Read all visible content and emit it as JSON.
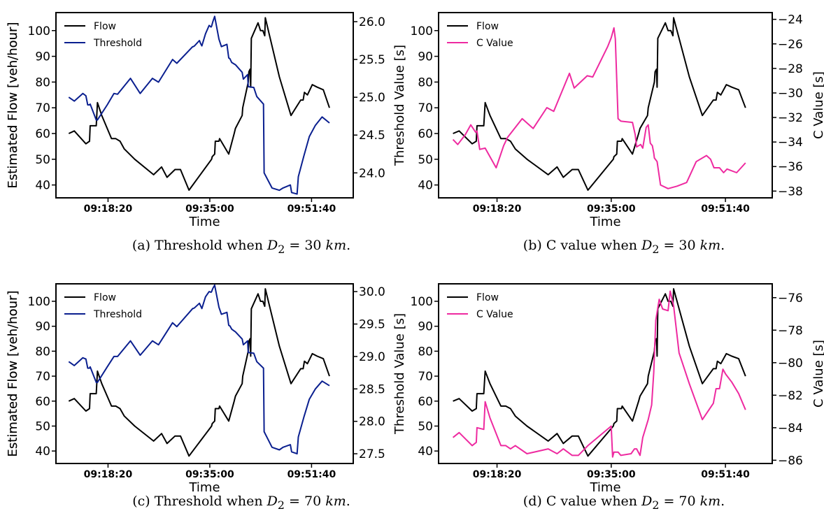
{
  "chart_data": [
    {
      "id": "a",
      "type": "line",
      "caption": {
        "prefix": "(a)  Threshold when ",
        "var": "D",
        "sub": "2",
        "eq": " = 30 ",
        "unit": "km",
        "suffix": "."
      },
      "xlabel": "Time",
      "ylabel_left": "Estimated Flow [veh/hour]",
      "ylabel_right": "Threshold Value [s]",
      "xticks": [
        "09:18:20",
        "09:35:00",
        "09:51:40"
      ],
      "x_tick_minutes": [
        18.33,
        35.0,
        51.67
      ],
      "xlim": [
        9.8,
        58.5
      ],
      "ylim_left": [
        35,
        107
      ],
      "ylim_right": [
        23.67,
        26.12
      ],
      "yticks_left": [
        40,
        50,
        60,
        70,
        80,
        90,
        100
      ],
      "yticks_right": [
        "24.0",
        "24.5",
        "25.0",
        "25.5",
        "26.0"
      ],
      "series": [
        {
          "name": "Flow",
          "axis": "left",
          "color": "#000000",
          "x": [
            11.9,
            12.8,
            14.7,
            15.3,
            15.4,
            16.4,
            16.6,
            17.3,
            18.9,
            19.6,
            20.3,
            21.0,
            22.7,
            25.8,
            27.1,
            28.0,
            29.3,
            30.2,
            31.6,
            35.3,
            35.4,
            35.8,
            35.9,
            36.5,
            36.6,
            38.1,
            39.0,
            39.2,
            40.3,
            40.4,
            41.3,
            41.4,
            41.6,
            41.7,
            41.8,
            42.9,
            43.3,
            43.7,
            44.0,
            44.1,
            46.4,
            48.3,
            49.9,
            50.3,
            50.5,
            51.0,
            51.8,
            52.6,
            53.6,
            54.6
          ],
          "y": [
            60,
            61,
            56,
            57,
            63,
            63,
            72,
            67,
            58,
            58,
            57,
            54,
            50,
            44,
            47,
            43,
            46,
            46,
            38,
            50,
            51,
            52,
            57,
            57,
            58,
            52,
            60,
            62,
            67,
            70,
            80,
            84,
            85,
            78,
            97,
            103,
            100,
            100,
            98,
            105,
            82,
            67,
            73,
            73,
            76,
            75,
            79,
            78,
            77,
            70
          ]
        },
        {
          "name": "Threshold",
          "axis": "right",
          "color": "#0a1f8f",
          "x": [
            11.9,
            12.8,
            14.2,
            14.7,
            15.0,
            15.3,
            15.4,
            16.4,
            16.6,
            18.2,
            19.3,
            19.9,
            22.0,
            23.6,
            25.6,
            26.6,
            28.9,
            29.6,
            32.2,
            32.3,
            32.5,
            33.3,
            33.5,
            33.7,
            34.3,
            34.9,
            35.2,
            35.3,
            35.5,
            35.8,
            36.5,
            36.9,
            37.8,
            38.1,
            38.3,
            38.6,
            39.2,
            40.3,
            40.5,
            41.2,
            41.3,
            42.2,
            42.7,
            43.8,
            43.9,
            45.2,
            46.4,
            47.0,
            48.2,
            48.4,
            49.3,
            49.5,
            50.4,
            51.3,
            52.3,
            53.4,
            54.6
          ],
          "y": [
            25.0,
            24.95,
            25.05,
            25.02,
            24.9,
            24.9,
            24.91,
            24.7,
            24.7,
            24.9,
            25.05,
            25.04,
            25.25,
            25.05,
            25.25,
            25.2,
            25.5,
            25.45,
            25.67,
            25.67,
            25.68,
            25.75,
            25.71,
            25.68,
            25.84,
            25.95,
            25.93,
            25.94,
            26.0,
            26.07,
            25.77,
            25.67,
            25.7,
            25.52,
            25.51,
            25.46,
            25.43,
            25.33,
            25.24,
            25.3,
            25.14,
            25.13,
            25.01,
            24.91,
            24.0,
            23.8,
            23.77,
            23.8,
            23.84,
            23.74,
            23.72,
            23.95,
            24.22,
            24.48,
            24.63,
            24.74,
            24.66
          ]
        }
      ]
    },
    {
      "id": "b",
      "type": "line",
      "caption": {
        "prefix": "(b)  C value when ",
        "var": "D",
        "sub": "2",
        "eq": " = 30 ",
        "unit": "km",
        "suffix": "."
      },
      "xlabel": "Time",
      "ylabel_left": "Estimated Flow [veh/hour]",
      "ylabel_right": "C Value [s]",
      "xticks": [
        "09:18:20",
        "09:35:00",
        "09:51:40"
      ],
      "x_tick_minutes": [
        18.33,
        35.0,
        51.67
      ],
      "xlim": [
        9.8,
        58.5
      ],
      "ylim_left": [
        35,
        107
      ],
      "ylim_right": [
        -38.55,
        -23.45
      ],
      "yticks_left": [
        40,
        50,
        60,
        70,
        80,
        90,
        100
      ],
      "yticks_right": [
        "−38",
        "−36",
        "−34",
        "−32",
        "−30",
        "−28",
        "−26",
        "−24"
      ],
      "series": [
        {
          "name": "Flow",
          "axis": "left",
          "color": "#000000",
          "x": [
            11.9,
            12.8,
            14.7,
            15.3,
            15.4,
            16.4,
            16.6,
            17.3,
            18.9,
            19.6,
            20.3,
            21.0,
            22.7,
            25.8,
            27.1,
            28.0,
            29.3,
            30.2,
            31.6,
            35.3,
            35.4,
            35.8,
            35.9,
            36.5,
            36.6,
            38.1,
            39.0,
            39.2,
            40.3,
            40.4,
            41.3,
            41.4,
            41.6,
            41.7,
            41.8,
            42.9,
            43.3,
            43.7,
            44.0,
            44.1,
            46.4,
            48.3,
            49.9,
            50.3,
            50.5,
            51.0,
            51.8,
            52.6,
            53.6,
            54.6
          ],
          "y": [
            60,
            61,
            56,
            57,
            63,
            63,
            72,
            67,
            58,
            58,
            57,
            54,
            50,
            44,
            47,
            43,
            46,
            46,
            38,
            50,
            51,
            52,
            57,
            57,
            58,
            52,
            60,
            62,
            67,
            70,
            80,
            84,
            85,
            78,
            97,
            103,
            100,
            100,
            98,
            105,
            82,
            67,
            73,
            73,
            76,
            75,
            79,
            78,
            77,
            70
          ]
        },
        {
          "name": "C Value",
          "axis": "right",
          "color": "#ee2aa0",
          "x": [
            11.9,
            12.6,
            13.7,
            14.5,
            15.2,
            15.4,
            15.8,
            16.6,
            18.2,
            19.3,
            19.9,
            22.0,
            23.6,
            25.6,
            26.6,
            28.9,
            29.6,
            31.5,
            32.3,
            34.5,
            35.0,
            35.4,
            35.6,
            36.0,
            36.4,
            38.1,
            38.5,
            38.7,
            39.3,
            39.6,
            40.1,
            40.4,
            40.7,
            41.0,
            41.2,
            41.3,
            41.7,
            42.2,
            43.3,
            44.6,
            46.0,
            47.4,
            48.9,
            49.5,
            50.0,
            50.8,
            51.4,
            51.9,
            53.3,
            54.6
          ],
          "y": [
            -33.8,
            -34.2,
            -33.4,
            -32.6,
            -33.2,
            -33.1,
            -34.6,
            -34.5,
            -36.1,
            -34.3,
            -33.6,
            -32.1,
            -32.9,
            -31.2,
            -31.5,
            -28.4,
            -29.6,
            -28.6,
            -28.7,
            -26.2,
            -25.5,
            -24.7,
            -25.6,
            -32.1,
            -32.3,
            -32.4,
            -33.4,
            -34.4,
            -34.2,
            -34.5,
            -32.8,
            -32.6,
            -34.1,
            -34.3,
            -34.9,
            -35.3,
            -35.6,
            -37.5,
            -37.8,
            -37.6,
            -37.3,
            -35.6,
            -35.1,
            -35.4,
            -36.1,
            -36.1,
            -36.5,
            -36.2,
            -36.5,
            -35.7
          ]
        }
      ]
    },
    {
      "id": "c",
      "type": "line",
      "caption": {
        "prefix": "(c)  Threshold when ",
        "var": "D",
        "sub": "2",
        "eq": " = 70 ",
        "unit": "km",
        "suffix": "."
      },
      "xlabel": "Time",
      "ylabel_left": "Estimated Flow [veh/hour]",
      "ylabel_right": "Threshold Value [s]",
      "xticks": [
        "09:18:20",
        "09:35:00",
        "09:51:40"
      ],
      "x_tick_minutes": [
        18.33,
        35.0,
        51.67
      ],
      "xlim": [
        9.8,
        58.5
      ],
      "ylim_left": [
        35,
        107
      ],
      "ylim_right": [
        27.35,
        30.12
      ],
      "yticks_left": [
        40,
        50,
        60,
        70,
        80,
        90,
        100
      ],
      "yticks_right": [
        "27.5",
        "28.0",
        "28.5",
        "29.0",
        "29.5",
        "30.0"
      ],
      "series": [
        {
          "name": "Flow",
          "axis": "left",
          "color": "#000000",
          "x": [
            11.9,
            12.8,
            14.7,
            15.3,
            15.4,
            16.4,
            16.6,
            17.3,
            18.9,
            19.6,
            20.3,
            21.0,
            22.7,
            25.8,
            27.1,
            28.0,
            29.3,
            30.2,
            31.6,
            35.3,
            35.4,
            35.8,
            35.9,
            36.5,
            36.6,
            38.1,
            39.0,
            39.2,
            40.3,
            40.4,
            41.3,
            41.4,
            41.6,
            41.7,
            41.8,
            42.9,
            43.3,
            43.7,
            44.0,
            44.1,
            46.4,
            48.3,
            49.9,
            50.3,
            50.5,
            51.0,
            51.8,
            52.6,
            53.6,
            54.6
          ],
          "y": [
            60,
            61,
            56,
            57,
            63,
            63,
            72,
            67,
            58,
            58,
            57,
            54,
            50,
            44,
            47,
            43,
            46,
            46,
            38,
            50,
            51,
            52,
            57,
            57,
            58,
            52,
            60,
            62,
            67,
            70,
            80,
            84,
            85,
            78,
            97,
            103,
            100,
            100,
            98,
            105,
            82,
            67,
            73,
            73,
            76,
            75,
            79,
            78,
            77,
            70
          ]
        },
        {
          "name": "Threshold",
          "axis": "right",
          "color": "#0a1f8f",
          "x": [
            11.9,
            12.8,
            14.2,
            14.7,
            15.0,
            15.3,
            15.4,
            16.4,
            16.6,
            18.2,
            19.3,
            19.9,
            22.0,
            23.6,
            25.6,
            26.6,
            28.9,
            29.6,
            32.2,
            32.3,
            32.5,
            33.3,
            33.5,
            33.7,
            34.3,
            34.9,
            35.2,
            35.3,
            35.5,
            35.8,
            36.5,
            36.9,
            37.8,
            38.1,
            38.3,
            38.6,
            39.2,
            40.3,
            40.5,
            41.2,
            41.3,
            42.2,
            42.7,
            43.8,
            43.9,
            45.2,
            46.4,
            47.0,
            48.2,
            48.4,
            49.3,
            49.5,
            50.4,
            51.3,
            52.3,
            53.4,
            54.6
          ],
          "y": [
            28.92,
            28.86,
            28.98,
            28.96,
            28.82,
            28.82,
            28.84,
            28.6,
            28.6,
            28.84,
            29.0,
            29.0,
            29.24,
            29.02,
            29.24,
            29.18,
            29.52,
            29.46,
            29.74,
            29.74,
            29.75,
            29.82,
            29.78,
            29.74,
            29.92,
            30.0,
            29.99,
            30.0,
            30.05,
            30.1,
            29.76,
            29.65,
            29.68,
            29.48,
            29.47,
            29.42,
            29.38,
            29.27,
            29.18,
            29.24,
            29.06,
            29.05,
            28.92,
            28.82,
            27.84,
            27.6,
            27.56,
            27.6,
            27.64,
            27.53,
            27.5,
            27.76,
            28.06,
            28.34,
            28.5,
            28.62,
            28.55
          ]
        }
      ]
    },
    {
      "id": "d",
      "type": "line",
      "caption": {
        "prefix": "(d)  C value when ",
        "var": "D",
        "sub": "2",
        "eq": " = 70 ",
        "unit": "km",
        "suffix": "."
      },
      "xlabel": "Time",
      "ylabel_left": "Estimated Flow [veh/hour]",
      "ylabel_right": "C Value [s]",
      "xticks": [
        "09:18:20",
        "09:35:00",
        "09:51:40"
      ],
      "x_tick_minutes": [
        18.33,
        35.0,
        51.67
      ],
      "xlim": [
        9.8,
        58.5
      ],
      "ylim_left": [
        35,
        107
      ],
      "ylim_right": [
        -86.2,
        -75.15
      ],
      "yticks_left": [
        40,
        50,
        60,
        70,
        80,
        90,
        100
      ],
      "yticks_right": [
        "−86",
        "−84",
        "−82",
        "−80",
        "−78",
        "−76"
      ],
      "series": [
        {
          "name": "Flow",
          "axis": "left",
          "color": "#000000",
          "x": [
            11.9,
            12.8,
            14.7,
            15.3,
            15.4,
            16.4,
            16.6,
            17.3,
            18.9,
            19.6,
            20.3,
            21.0,
            22.7,
            25.8,
            27.1,
            28.0,
            29.3,
            30.2,
            31.6,
            35.3,
            35.4,
            35.8,
            35.9,
            36.5,
            36.6,
            38.1,
            39.0,
            39.2,
            40.3,
            40.4,
            41.3,
            41.4,
            41.6,
            41.7,
            41.8,
            42.9,
            43.3,
            43.7,
            44.0,
            44.1,
            46.4,
            48.3,
            49.9,
            50.3,
            50.5,
            51.0,
            51.8,
            52.6,
            53.6,
            54.6
          ],
          "y": [
            60,
            61,
            56,
            57,
            63,
            63,
            72,
            67,
            58,
            58,
            57,
            54,
            50,
            44,
            47,
            43,
            46,
            46,
            38,
            50,
            51,
            52,
            57,
            57,
            58,
            52,
            60,
            62,
            67,
            70,
            80,
            84,
            85,
            78,
            97,
            103,
            100,
            100,
            98,
            105,
            82,
            67,
            73,
            73,
            76,
            75,
            79,
            78,
            77,
            70
          ]
        },
        {
          "name": "C Value",
          "axis": "right",
          "color": "#ee2aa0",
          "x": [
            11.9,
            12.8,
            14.7,
            15.3,
            15.4,
            16.4,
            16.6,
            17.3,
            18.9,
            19.6,
            20.3,
            21.0,
            22.7,
            25.8,
            27.1,
            28.0,
            29.3,
            30.2,
            31.6,
            35.0,
            35.2,
            35.4,
            36.0,
            36.4,
            37.9,
            38.4,
            38.7,
            39.2,
            39.6,
            40.4,
            40.9,
            41.2,
            41.5,
            42.0,
            42.5,
            43.3,
            43.6,
            44.1,
            44.9,
            46.4,
            48.3,
            49.9,
            50.3,
            50.8,
            51.3,
            51.7,
            52.6,
            53.6,
            54.6
          ],
          "y": [
            -84.6,
            -84.3,
            -85.1,
            -84.9,
            -84.0,
            -84.1,
            -82.4,
            -83.4,
            -85.1,
            -85.1,
            -85.3,
            -85.1,
            -85.6,
            -85.3,
            -85.6,
            -85.3,
            -85.7,
            -85.7,
            -85.1,
            -83.9,
            -85.8,
            -85.5,
            -85.5,
            -85.7,
            -85.6,
            -85.3,
            -85.3,
            -85.7,
            -84.6,
            -83.5,
            -82.6,
            -80.6,
            -77.4,
            -76.1,
            -76.7,
            -76.8,
            -75.6,
            -76.5,
            -79.4,
            -81.3,
            -83.5,
            -82.5,
            -81.6,
            -81.6,
            -80.4,
            -80.7,
            -81.2,
            -81.9,
            -82.9
          ]
        }
      ]
    }
  ]
}
